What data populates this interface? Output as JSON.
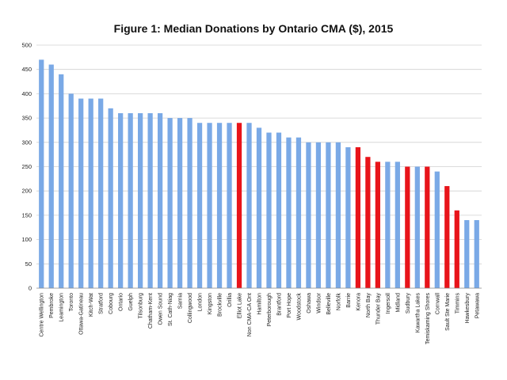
{
  "chart_data": {
    "type": "bar",
    "title": "Figure 1: Median Donations by Ontario CMA ($), 2015",
    "xlabel": "",
    "ylabel": "",
    "ylim": [
      0,
      500
    ],
    "yticks": [
      0,
      50,
      100,
      150,
      200,
      250,
      300,
      350,
      400,
      450,
      500
    ],
    "grid": true,
    "colors": {
      "default": "#7aa9e6",
      "highlight": "#e8141a"
    },
    "categories": [
      "Centre Wellington",
      "Pembroke",
      "Leamington",
      "Toronto",
      "Ottawa-Gatineau",
      "Kitch-Wat",
      "Stratford",
      "Cobourg",
      "Ontario",
      "Guelph",
      "Tilsonburg",
      "Chatham-Kent",
      "Owen Sound",
      "St. Cath-Niag",
      "Sarnia",
      "Collingwood",
      "London",
      "Kingston",
      "Brockville",
      "Orillia",
      "Elliot Lake",
      "Non CMA-CA Ont",
      "Hamilton",
      "Peterborough",
      "Brantford",
      "Port Hope",
      "Woodstock",
      "Oshawa",
      "Windsor",
      "Belleville",
      "Norfolk",
      "Barrie",
      "Kenora",
      "North Bay",
      "Thunder Bay",
      "Ingersoll",
      "Midland",
      "Sudbury",
      "Kawartha Lakes",
      "Temiskaming Shores",
      "Cornwall",
      "Sault Ste Marie",
      "Timmins",
      "Hawkesbury",
      "Petawawa"
    ],
    "values": [
      470,
      460,
      440,
      400,
      390,
      390,
      390,
      370,
      360,
      360,
      360,
      360,
      360,
      350,
      350,
      350,
      340,
      340,
      340,
      340,
      340,
      340,
      330,
      320,
      320,
      310,
      310,
      300,
      300,
      300,
      300,
      290,
      290,
      270,
      260,
      260,
      260,
      250,
      250,
      250,
      240,
      210,
      160,
      140,
      140
    ],
    "highlighted": [
      "Elliot Lake",
      "Kenora",
      "North Bay",
      "Thunder Bay",
      "Sudbury",
      "Temiskaming Shores",
      "Sault Ste Marie",
      "Timmins"
    ]
  }
}
